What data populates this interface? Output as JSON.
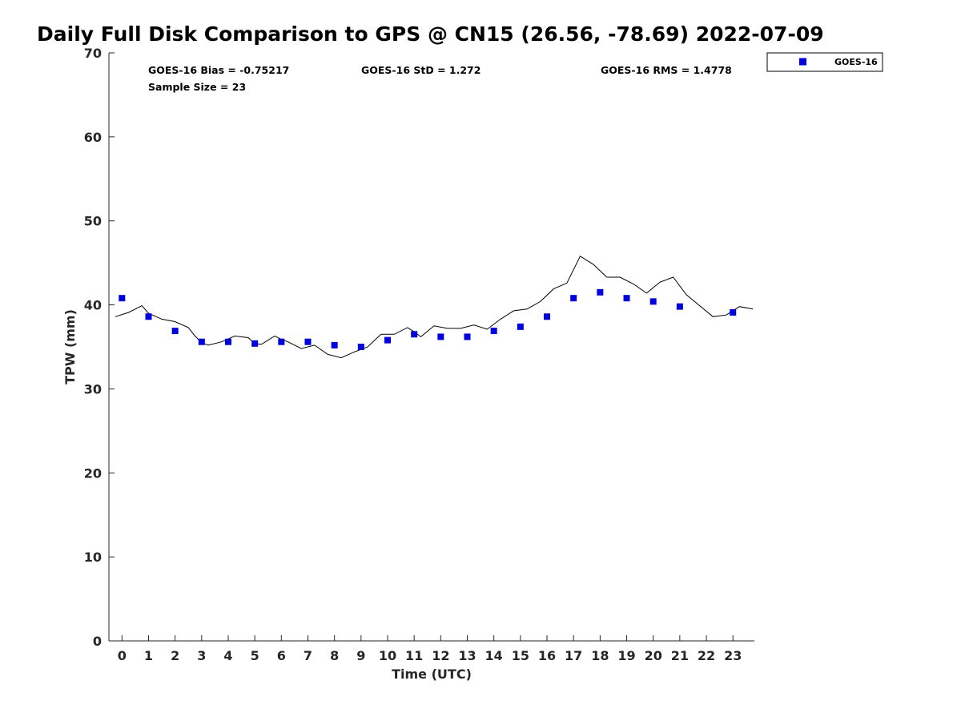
{
  "chart_data": {
    "type": "scatter",
    "title": "Daily Full Disk Comparison to GPS @ CN15 (26.56, -78.69) 2022-07-09",
    "xlabel": "Time (UTC)",
    "ylabel": "TPW (mm)",
    "xlim": [
      -0.5,
      23.8
    ],
    "ylim": [
      0,
      70
    ],
    "x_ticks": [
      0,
      1,
      2,
      3,
      4,
      5,
      6,
      7,
      8,
      9,
      10,
      11,
      12,
      13,
      14,
      15,
      16,
      17,
      18,
      19,
      20,
      21,
      22,
      23
    ],
    "y_ticks": [
      0,
      10,
      20,
      30,
      40,
      50,
      60,
      70
    ],
    "grid": false,
    "legend_position": "outside-top-right",
    "stats": {
      "bias": "GOES-16 Bias = -0.75217",
      "std": "GOES-16 StD = 1.272",
      "rms": "GOES-16 RMS = 1.4778",
      "sample": "Sample Size = 23"
    },
    "series": [
      {
        "name": "GOES-16",
        "kind": "scatter",
        "marker": "square",
        "color": "#0000dd",
        "x": [
          0,
          1,
          2,
          3,
          4,
          5,
          6,
          7,
          8,
          9,
          10,
          11,
          12,
          13,
          14,
          15,
          16,
          17,
          18,
          19,
          20,
          21,
          23
        ],
        "y": [
          40.8,
          38.6,
          36.9,
          35.6,
          35.6,
          35.4,
          35.6,
          35.6,
          35.2,
          35.0,
          35.8,
          36.5,
          36.2,
          36.2,
          36.9,
          37.4,
          38.6,
          40.8,
          41.5,
          40.8,
          40.4,
          39.8,
          39.1
        ]
      },
      {
        "kind": "line",
        "color": "#000000",
        "x": [
          -0.25,
          0.25,
          0.75,
          1.0,
          1.5,
          2.0,
          2.5,
          2.75,
          3.0,
          3.25,
          3.75,
          4.25,
          4.75,
          5.0,
          5.25,
          5.75,
          6.0,
          6.25,
          6.75,
          7.25,
          7.75,
          8.25,
          8.75,
          9.0,
          9.25,
          9.75,
          10.25,
          10.75,
          11.0,
          11.25,
          11.75,
          12.25,
          12.75,
          13.25,
          13.75,
          14.25,
          14.75,
          15.25,
          15.75,
          16.25,
          16.75,
          17.25,
          17.75,
          18.25,
          18.75,
          19.25,
          19.75,
          20.25,
          20.75,
          21.25,
          21.75,
          22.25,
          22.75,
          23.25,
          23.75
        ],
        "y": [
          38.6,
          39.1,
          39.9,
          39.0,
          38.3,
          38.0,
          37.3,
          36.3,
          35.5,
          35.2,
          35.6,
          36.3,
          36.1,
          35.4,
          35.3,
          36.3,
          35.9,
          35.6,
          34.8,
          35.2,
          34.1,
          33.7,
          34.4,
          34.7,
          35.0,
          36.5,
          36.5,
          37.3,
          36.8,
          36.2,
          37.5,
          37.2,
          37.2,
          37.6,
          37.1,
          38.3,
          39.3,
          39.5,
          40.4,
          41.9,
          42.6,
          45.8,
          44.8,
          43.3,
          43.3,
          42.5,
          41.4,
          42.7,
          43.3,
          41.2,
          39.9,
          38.6,
          38.8,
          39.8,
          39.5
        ]
      }
    ]
  }
}
